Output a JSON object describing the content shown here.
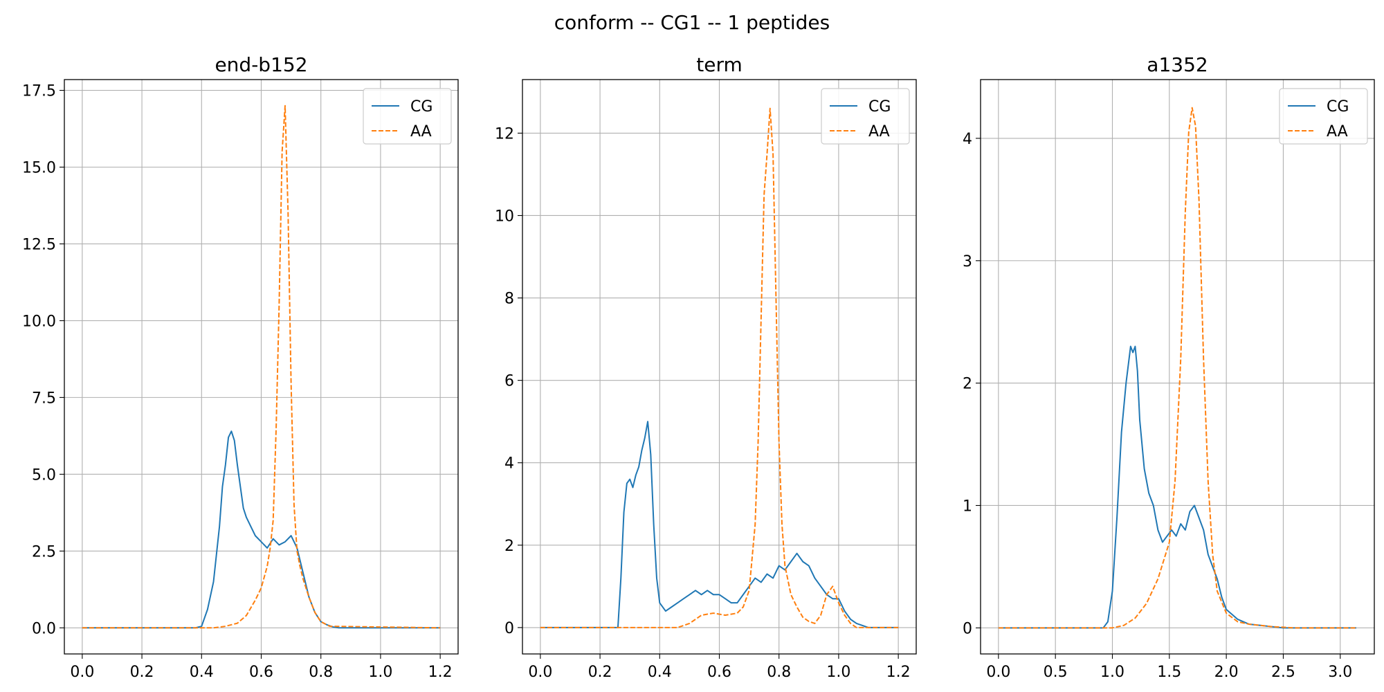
{
  "figure": {
    "suptitle": "conform -- CG1 -- 1 peptides"
  },
  "colors": {
    "CG": "#1f77b4",
    "AA": "#ff7f0e",
    "grid": "#b0b0b0"
  },
  "chart_data": [
    {
      "type": "line",
      "title": "end-b152",
      "xlim": [
        -0.06,
        1.26
      ],
      "ylim": [
        -0.85,
        17.85
      ],
      "xticks": [
        0.0,
        0.2,
        0.4,
        0.6,
        0.8,
        1.0,
        1.2
      ],
      "xtick_labels": [
        "0.0",
        "0.2",
        "0.4",
        "0.6",
        "0.8",
        "1.0",
        "1.2"
      ],
      "yticks": [
        0.0,
        2.5,
        5.0,
        7.5,
        10.0,
        12.5,
        15.0,
        17.5
      ],
      "ytick_labels": [
        "0.0",
        "2.5",
        "5.0",
        "7.5",
        "10.0",
        "12.5",
        "15.0",
        "17.5"
      ],
      "grid": true,
      "legend": {
        "position": "top-right",
        "entries": [
          "CG",
          "AA"
        ]
      },
      "series": [
        {
          "name": "CG",
          "style": "solid",
          "x": [
            0.0,
            0.38,
            0.4,
            0.42,
            0.44,
            0.46,
            0.47,
            0.48,
            0.49,
            0.5,
            0.51,
            0.52,
            0.53,
            0.54,
            0.55,
            0.56,
            0.57,
            0.58,
            0.6,
            0.62,
            0.64,
            0.66,
            0.68,
            0.7,
            0.72,
            0.74,
            0.76,
            0.78,
            0.8,
            0.82,
            0.84,
            0.86,
            1.2
          ],
          "y": [
            0.0,
            0.0,
            0.05,
            0.6,
            1.5,
            3.3,
            4.6,
            5.3,
            6.2,
            6.4,
            6.1,
            5.3,
            4.6,
            3.9,
            3.6,
            3.4,
            3.2,
            3.0,
            2.8,
            2.6,
            2.9,
            2.7,
            2.8,
            3.0,
            2.6,
            1.8,
            1.0,
            0.5,
            0.2,
            0.1,
            0.03,
            0.0,
            0.0
          ]
        },
        {
          "name": "AA",
          "style": "dashed",
          "x": [
            0.0,
            0.44,
            0.48,
            0.52,
            0.55,
            0.58,
            0.6,
            0.62,
            0.63,
            0.64,
            0.65,
            0.66,
            0.67,
            0.68,
            0.69,
            0.7,
            0.71,
            0.72,
            0.73,
            0.74,
            0.76,
            0.78,
            0.8,
            0.83,
            1.2
          ],
          "y": [
            0.0,
            0.0,
            0.05,
            0.15,
            0.4,
            0.9,
            1.3,
            2.0,
            2.6,
            3.5,
            6.5,
            10.5,
            15.5,
            17.0,
            13.5,
            8.0,
            4.0,
            2.5,
            2.0,
            1.6,
            1.0,
            0.5,
            0.2,
            0.05,
            0.0
          ]
        }
      ]
    },
    {
      "type": "line",
      "title": "term",
      "xlim": [
        -0.06,
        1.26
      ],
      "ylim": [
        -0.64,
        13.3
      ],
      "xticks": [
        0.0,
        0.2,
        0.4,
        0.6,
        0.8,
        1.0,
        1.2
      ],
      "xtick_labels": [
        "0.0",
        "0.2",
        "0.4",
        "0.6",
        "0.8",
        "1.0",
        "1.2"
      ],
      "yticks": [
        0,
        2,
        4,
        6,
        8,
        10,
        12
      ],
      "ytick_labels": [
        "0",
        "2",
        "4",
        "6",
        "8",
        "10",
        "12"
      ],
      "grid": true,
      "legend": {
        "position": "top-right",
        "entries": [
          "CG",
          "AA"
        ]
      },
      "series": [
        {
          "name": "CG",
          "style": "solid",
          "x": [
            0.0,
            0.26,
            0.27,
            0.28,
            0.29,
            0.3,
            0.31,
            0.32,
            0.33,
            0.34,
            0.35,
            0.36,
            0.37,
            0.38,
            0.39,
            0.4,
            0.42,
            0.44,
            0.46,
            0.48,
            0.5,
            0.52,
            0.54,
            0.56,
            0.58,
            0.6,
            0.62,
            0.64,
            0.66,
            0.68,
            0.7,
            0.72,
            0.74,
            0.76,
            0.78,
            0.8,
            0.82,
            0.84,
            0.86,
            0.88,
            0.9,
            0.92,
            0.94,
            0.96,
            0.98,
            1.0,
            1.02,
            1.04,
            1.06,
            1.08,
            1.1,
            1.2
          ],
          "y": [
            0.0,
            0.0,
            1.2,
            2.8,
            3.5,
            3.6,
            3.4,
            3.7,
            3.9,
            4.3,
            4.6,
            5.0,
            4.2,
            2.5,
            1.2,
            0.6,
            0.4,
            0.5,
            0.6,
            0.7,
            0.8,
            0.9,
            0.8,
            0.9,
            0.8,
            0.8,
            0.7,
            0.6,
            0.6,
            0.8,
            1.0,
            1.2,
            1.1,
            1.3,
            1.2,
            1.5,
            1.4,
            1.6,
            1.8,
            1.6,
            1.5,
            1.2,
            1.0,
            0.8,
            0.7,
            0.7,
            0.4,
            0.2,
            0.1,
            0.05,
            0.0,
            0.0
          ]
        },
        {
          "name": "AA",
          "style": "dashed",
          "x": [
            0.0,
            0.46,
            0.5,
            0.54,
            0.58,
            0.62,
            0.66,
            0.68,
            0.7,
            0.72,
            0.73,
            0.74,
            0.75,
            0.76,
            0.77,
            0.78,
            0.79,
            0.8,
            0.81,
            0.82,
            0.84,
            0.86,
            0.88,
            0.9,
            0.92,
            0.94,
            0.96,
            0.98,
            1.0,
            1.02,
            1.04,
            1.06,
            1.2
          ],
          "y": [
            0.0,
            0.0,
            0.1,
            0.3,
            0.35,
            0.3,
            0.35,
            0.5,
            0.9,
            2.5,
            4.5,
            7.5,
            10.5,
            11.5,
            12.6,
            11.5,
            8.0,
            4.5,
            2.5,
            1.5,
            0.8,
            0.5,
            0.25,
            0.15,
            0.1,
            0.3,
            0.8,
            1.0,
            0.6,
            0.3,
            0.1,
            0.0,
            0.0
          ]
        }
      ]
    },
    {
      "type": "line",
      "title": "a1352",
      "xlim": [
        -0.157,
        3.299
      ],
      "ylim": [
        -0.213,
        4.48
      ],
      "xticks": [
        0.0,
        0.5,
        1.0,
        1.5,
        2.0,
        2.5,
        3.0
      ],
      "xtick_labels": [
        "0.0",
        "0.5",
        "1.0",
        "1.5",
        "2.0",
        "2.5",
        "3.0"
      ],
      "yticks": [
        0,
        1,
        2,
        3,
        4
      ],
      "ytick_labels": [
        "0",
        "1",
        "2",
        "3",
        "4"
      ],
      "grid": true,
      "legend": {
        "position": "top-right",
        "entries": [
          "CG",
          "AA"
        ]
      },
      "series": [
        {
          "name": "CG",
          "style": "solid",
          "x": [
            0.0,
            0.92,
            0.96,
            1.0,
            1.04,
            1.08,
            1.12,
            1.16,
            1.18,
            1.2,
            1.22,
            1.24,
            1.28,
            1.32,
            1.36,
            1.4,
            1.44,
            1.48,
            1.52,
            1.56,
            1.6,
            1.64,
            1.68,
            1.72,
            1.76,
            1.8,
            1.84,
            1.88,
            1.92,
            1.96,
            2.0,
            2.1,
            2.2,
            2.3,
            2.4,
            2.5,
            3.14
          ],
          "y": [
            0.0,
            0.0,
            0.05,
            0.3,
            0.9,
            1.6,
            2.0,
            2.3,
            2.25,
            2.3,
            2.1,
            1.7,
            1.3,
            1.1,
            1.0,
            0.8,
            0.7,
            0.75,
            0.8,
            0.75,
            0.85,
            0.8,
            0.95,
            1.0,
            0.9,
            0.8,
            0.6,
            0.5,
            0.4,
            0.25,
            0.15,
            0.07,
            0.03,
            0.02,
            0.01,
            0.0,
            0.0
          ]
        },
        {
          "name": "AA",
          "style": "dashed",
          "x": [
            0.0,
            1.0,
            1.1,
            1.2,
            1.3,
            1.4,
            1.5,
            1.55,
            1.6,
            1.64,
            1.67,
            1.7,
            1.73,
            1.76,
            1.8,
            1.84,
            1.88,
            1.92,
            2.0,
            2.1,
            2.2,
            2.4,
            2.6,
            3.14
          ],
          "y": [
            0.0,
            0.0,
            0.02,
            0.08,
            0.2,
            0.4,
            0.7,
            1.2,
            2.2,
            3.4,
            4.05,
            4.25,
            4.1,
            3.5,
            2.2,
            1.2,
            0.6,
            0.3,
            0.12,
            0.05,
            0.03,
            0.01,
            0.0,
            0.0
          ]
        }
      ]
    }
  ]
}
